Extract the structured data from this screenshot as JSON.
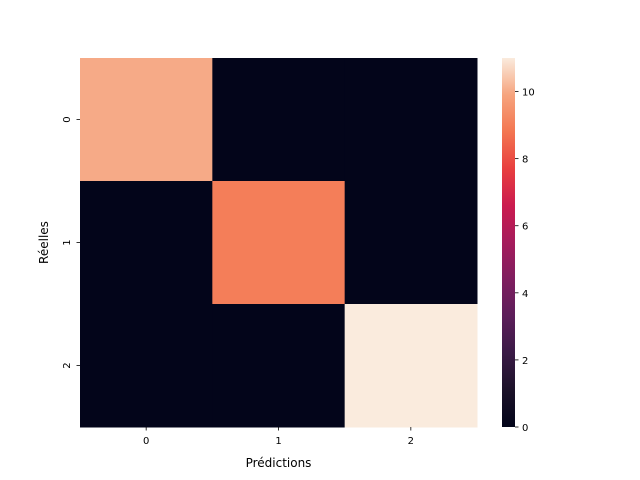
{
  "chart_data": {
    "type": "heatmap",
    "title": "",
    "xlabel": "Prédictions",
    "ylabel": "Réelles",
    "x_categories": [
      "0",
      "1",
      "2"
    ],
    "y_categories": [
      "0",
      "1",
      "2"
    ],
    "values": [
      [
        10,
        0,
        0
      ],
      [
        0,
        9,
        0
      ],
      [
        0,
        0,
        11
      ]
    ],
    "colormap": "rocket",
    "colorbar": {
      "min": 0,
      "max": 11,
      "ticks": [
        "0",
        "2",
        "4",
        "6",
        "8",
        "10"
      ]
    }
  }
}
